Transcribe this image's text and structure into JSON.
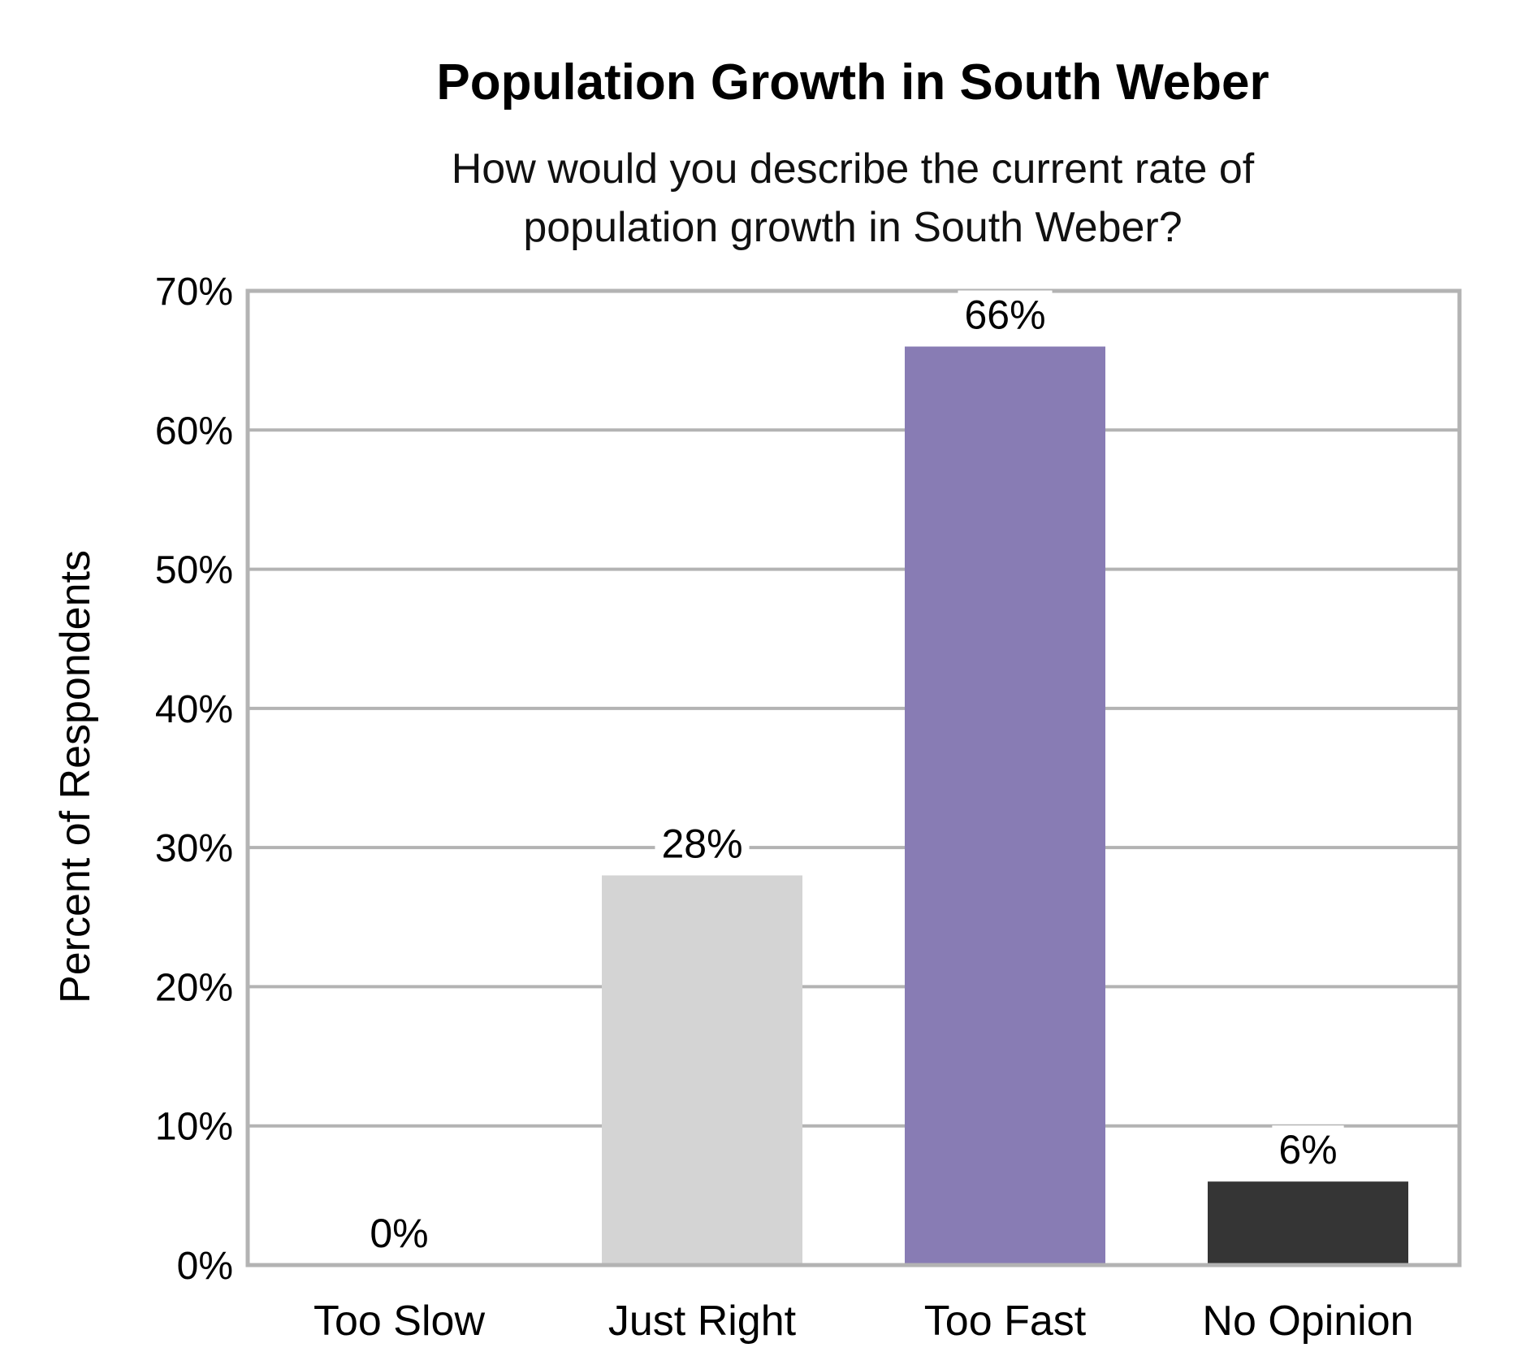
{
  "chart_data": {
    "type": "bar",
    "title": "Population Growth in South Weber",
    "subtitle_lines": [
      "How would you describe the current rate of",
      "population growth in South Weber?"
    ],
    "xlabel": "",
    "ylabel": "Percent of Respondents",
    "categories": [
      "Too Slow",
      "Just Right",
      "Too Fast",
      "No Opinion"
    ],
    "values": [
      0,
      28,
      66,
      6
    ],
    "value_labels": [
      "0%",
      "28%",
      "66%",
      "6%"
    ],
    "bar_colors": [
      "#ffffff",
      "#d4d4d4",
      "#887cb4",
      "#353535"
    ],
    "ylim": [
      0,
      70
    ],
    "yticks": [
      0,
      10,
      20,
      30,
      40,
      50,
      60,
      70
    ],
    "ytick_labels": [
      "0%",
      "10%",
      "20%",
      "30%",
      "40%",
      "50%",
      "60%",
      "70%"
    ],
    "grid": true,
    "legend": "none",
    "grid_color": "#b3b3b3"
  }
}
